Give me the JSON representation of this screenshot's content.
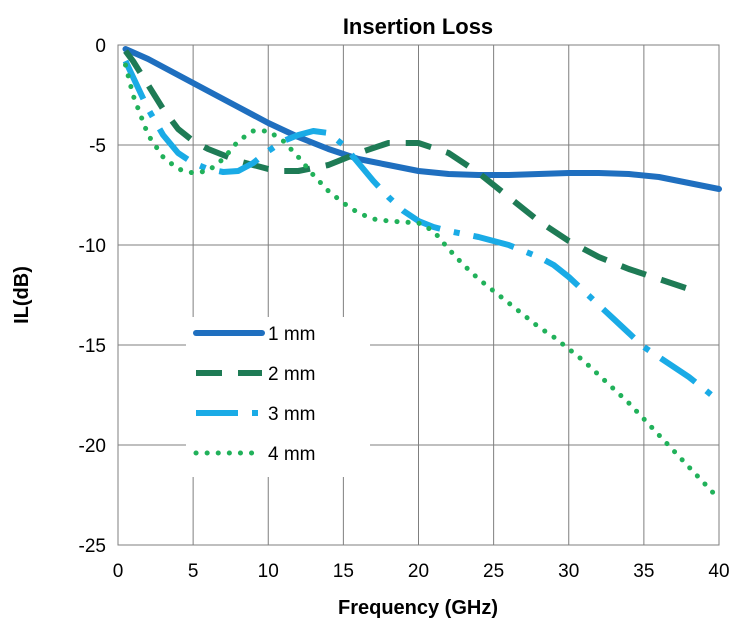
{
  "chart_data": {
    "type": "line",
    "title": "Insertion Loss",
    "xlabel": "Frequency (GHz)",
    "ylabel": "IL(dB)",
    "xlim": [
      0,
      40
    ],
    "ylim": [
      -25,
      0
    ],
    "xticks": [
      0,
      5,
      10,
      15,
      20,
      25,
      30,
      35,
      40
    ],
    "yticks": [
      0,
      -5,
      -10,
      -15,
      -20,
      -25
    ],
    "grid": true,
    "legend": "inside-lower-left",
    "series": [
      {
        "name": "1 mm",
        "color": "#1f6fbf",
        "style": "solid",
        "x": [
          0.5,
          2,
          4,
          6,
          8,
          10,
          12,
          14,
          16,
          18,
          20,
          22,
          24,
          26,
          28,
          30,
          32,
          34,
          36,
          38,
          40
        ],
        "y": [
          -0.2,
          -0.7,
          -1.5,
          -2.3,
          -3.1,
          -3.9,
          -4.6,
          -5.2,
          -5.7,
          -6.0,
          -6.3,
          -6.45,
          -6.5,
          -6.5,
          -6.45,
          -6.4,
          -6.4,
          -6.45,
          -6.6,
          -6.9,
          -7.2
        ]
      },
      {
        "name": "2 mm",
        "color": "#1e7b55",
        "style": "dashed",
        "x": [
          0.5,
          1,
          2,
          3,
          4,
          5,
          6,
          8,
          10,
          11,
          12,
          14,
          16,
          18,
          20,
          22,
          24,
          26,
          28,
          30,
          32,
          34,
          36,
          38
        ],
        "y": [
          -0.3,
          -0.8,
          -2.0,
          -3.2,
          -4.2,
          -4.8,
          -5.2,
          -5.8,
          -6.2,
          -6.3,
          -6.3,
          -6.0,
          -5.4,
          -4.9,
          -4.9,
          -5.4,
          -6.4,
          -7.6,
          -8.8,
          -9.8,
          -10.6,
          -11.2,
          -11.7,
          -12.2
        ]
      },
      {
        "name": "3 mm",
        "color": "#1aabe6",
        "style": "dash-dot",
        "x": [
          0.5,
          1,
          2,
          3,
          4,
          5,
          6,
          7,
          8,
          9,
          10,
          11,
          12,
          13,
          14,
          15,
          16,
          17,
          18,
          19,
          20,
          21,
          22,
          23,
          24,
          25,
          26,
          27,
          28,
          29,
          30,
          31,
          32,
          33,
          34,
          35,
          36,
          37,
          38,
          39,
          40
        ],
        "y": [
          -0.8,
          -1.6,
          -3.2,
          -4.5,
          -5.4,
          -5.9,
          -6.2,
          -6.35,
          -6.3,
          -5.9,
          -5.3,
          -4.8,
          -4.5,
          -4.3,
          -4.4,
          -5.0,
          -5.9,
          -6.8,
          -7.6,
          -8.3,
          -8.8,
          -9.1,
          -9.3,
          -9.45,
          -9.6,
          -9.8,
          -10.0,
          -10.3,
          -10.6,
          -11.0,
          -11.6,
          -12.3,
          -13.0,
          -13.7,
          -14.4,
          -15.1,
          -15.6,
          -16.1,
          -16.6,
          -17.2,
          -17.8
        ]
      },
      {
        "name": "4 mm",
        "color": "#21b15a",
        "style": "dotted",
        "x": [
          0.5,
          1,
          2,
          3,
          4,
          5,
          6,
          7,
          8,
          9,
          10,
          11,
          12,
          13,
          14,
          15,
          16,
          17,
          18,
          19,
          20,
          21,
          22,
          23,
          24,
          25,
          26,
          27,
          28,
          29,
          30,
          31,
          32,
          33,
          34,
          35,
          36,
          37,
          38,
          39,
          40
        ],
        "y": [
          -1.0,
          -2.5,
          -4.5,
          -5.6,
          -6.2,
          -6.4,
          -6.3,
          -5.7,
          -4.8,
          -4.3,
          -4.3,
          -4.8,
          -5.6,
          -6.5,
          -7.3,
          -7.9,
          -8.4,
          -8.7,
          -8.8,
          -8.85,
          -8.9,
          -9.3,
          -10.2,
          -11.0,
          -11.7,
          -12.3,
          -12.9,
          -13.5,
          -14.1,
          -14.6,
          -15.2,
          -15.8,
          -16.5,
          -17.2,
          -17.9,
          -18.7,
          -19.5,
          -20.3,
          -21.1,
          -21.9,
          -22.7
        ]
      }
    ]
  }
}
